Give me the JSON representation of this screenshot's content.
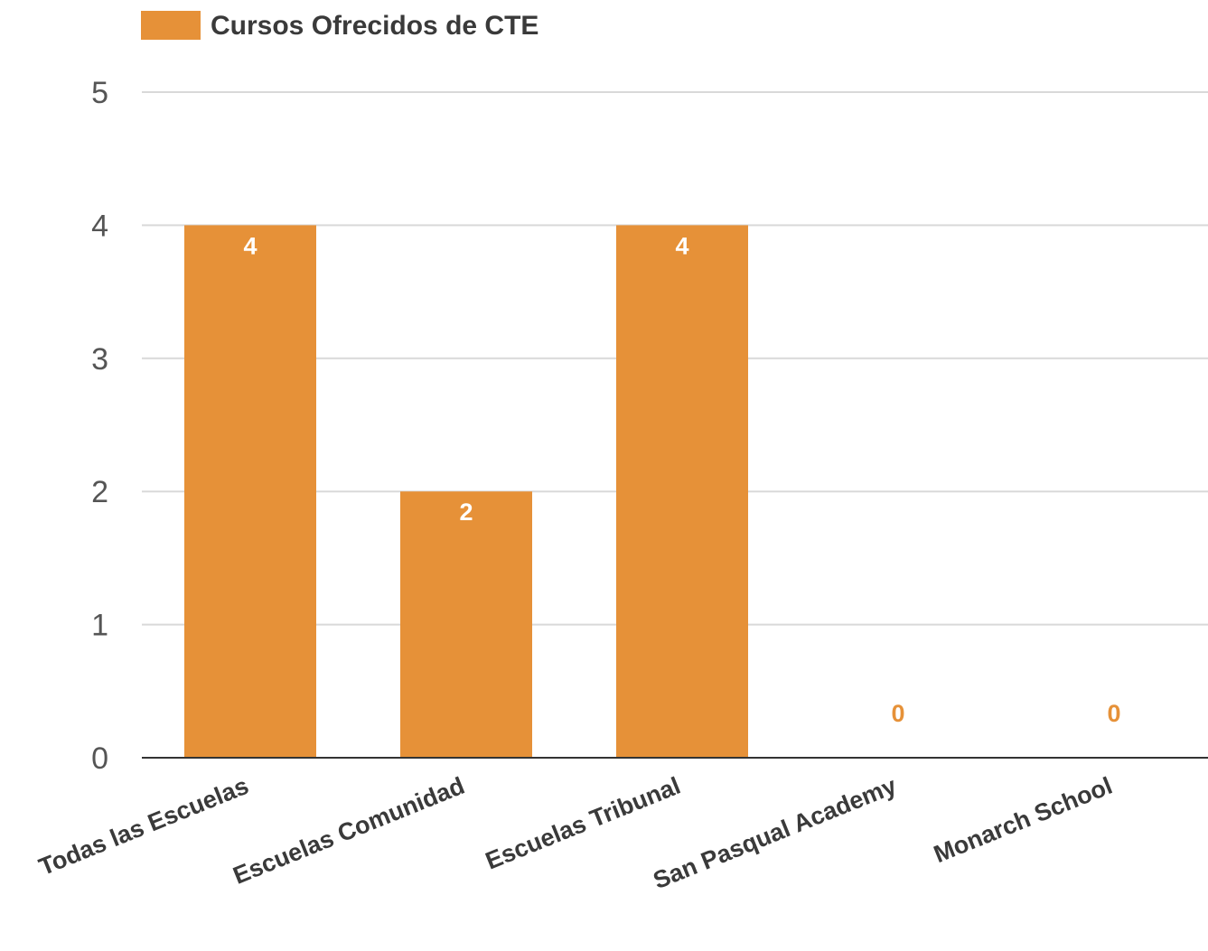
{
  "chart_data": {
    "type": "bar",
    "categories": [
      "Todas las Escuelas",
      "Escuelas Comunidad",
      "Escuelas Tribunal",
      "San Pasqual Academy",
      "Monarch School"
    ],
    "series": [
      {
        "name": "Cursos Ofrecidos de CTE",
        "values": [
          4,
          2,
          4,
          0,
          0
        ],
        "color": "#E69138"
      }
    ],
    "data_labels": [
      "4",
      "2",
      "4",
      "0",
      "0"
    ],
    "title": "",
    "xlabel": "",
    "ylabel": "",
    "ylim": [
      0,
      5
    ],
    "yticks": [
      0,
      1,
      2,
      3,
      4,
      5
    ],
    "grid": true,
    "legend": "top-left",
    "colors": {
      "bar": "#E69138",
      "label_inside": "#ffffff",
      "label_outside": "#E69138",
      "grid": "#d9d9d9",
      "axis": "#333333"
    }
  }
}
